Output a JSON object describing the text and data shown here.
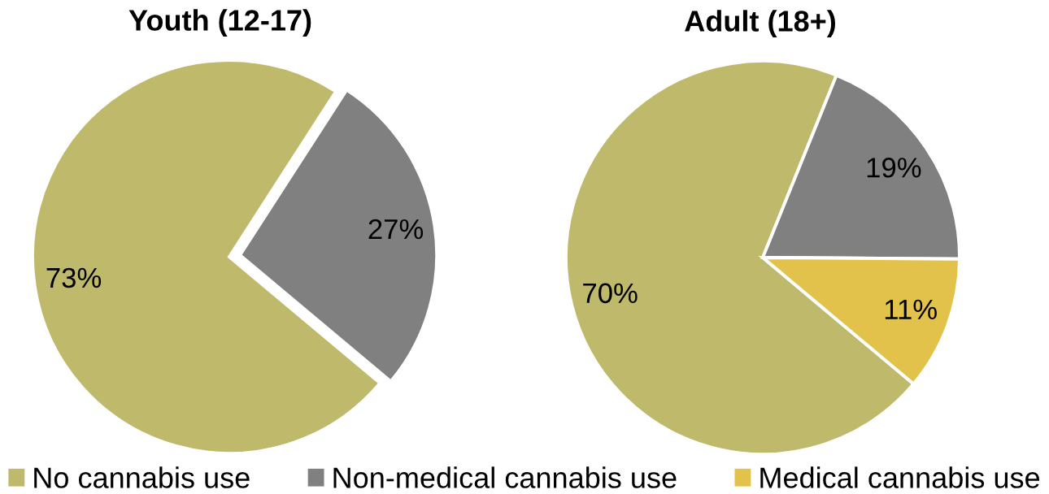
{
  "chart_data": {
    "type": "pie",
    "categories": [
      "No cannabis use",
      "Non-medical cannabis use",
      "Medical cannabis use"
    ],
    "colors": [
      "#bfb96b",
      "#808080",
      "#e3c24b"
    ],
    "legend": "bottom",
    "series": [
      {
        "name": "Youth (12-17)",
        "values": [
          73,
          27,
          null
        ],
        "value_labels": [
          "73%",
          "27%",
          null
        ]
      },
      {
        "name": "Adult (18+)",
        "values": [
          70,
          19,
          11
        ],
        "value_labels": [
          "70%",
          "19%",
          "11%"
        ]
      }
    ]
  }
}
